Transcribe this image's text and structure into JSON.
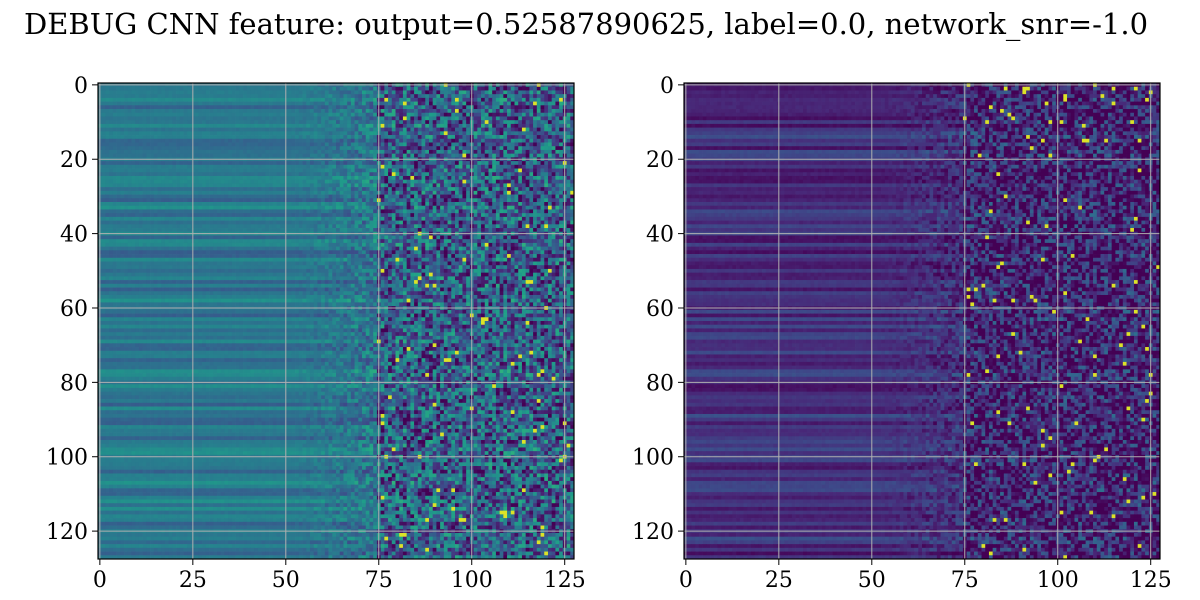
{
  "figure": {
    "title": "DEBUG CNN feature: output=0.52587890625, label=0.0, network_snr=-1.0"
  },
  "chart_data": [
    {
      "type": "heatmap",
      "colormap": "viridis",
      "rows": 128,
      "cols": 128,
      "xlim": [
        0,
        127
      ],
      "ylim": [
        127,
        0
      ],
      "xticks": [
        0,
        25,
        50,
        75,
        100,
        125
      ],
      "yticks": [
        0,
        20,
        40,
        60,
        80,
        100,
        120
      ],
      "grid": true,
      "value_range": [
        0,
        1
      ],
      "pattern": {
        "smooth_until_col": 50,
        "transition_until_col": 75,
        "base_level": 0.4,
        "noise_level": 0.45,
        "seed": 11
      }
    },
    {
      "type": "heatmap",
      "colormap": "viridis",
      "rows": 128,
      "cols": 128,
      "xlim": [
        0,
        127
      ],
      "ylim": [
        127,
        0
      ],
      "xticks": [
        0,
        25,
        50,
        75,
        100,
        125
      ],
      "yticks": [
        0,
        20,
        40,
        60,
        80,
        100,
        120
      ],
      "grid": true,
      "value_range": [
        0,
        1
      ],
      "pattern": {
        "smooth_until_col": 50,
        "transition_until_col": 75,
        "base_level": 0.14,
        "noise_level": 0.35,
        "seed": 29
      }
    }
  ]
}
